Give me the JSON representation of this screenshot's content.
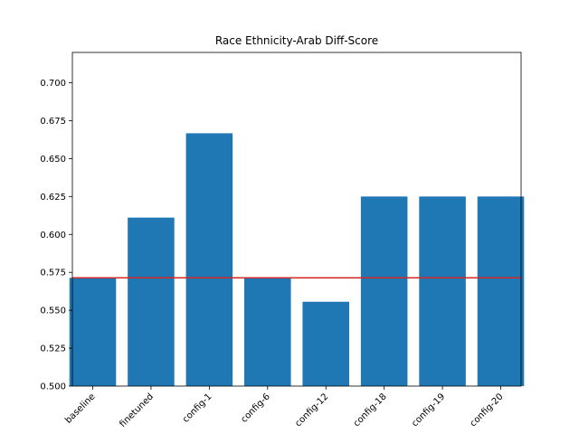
{
  "chart_data": {
    "type": "bar",
    "title": "Race Ethnicity-Arab Diff-Score",
    "xlabel": "",
    "ylabel": "",
    "categories": [
      "baseline",
      "finetuned",
      "config-1",
      "config-6",
      "config-12",
      "config-18",
      "config-19",
      "config-20"
    ],
    "values": [
      0.5714,
      0.6111,
      0.6667,
      0.5714,
      0.5556,
      0.625,
      0.625,
      0.625
    ],
    "ylim": [
      0.5,
      0.72
    ],
    "yticks": [
      "0.500",
      "0.525",
      "0.550",
      "0.575",
      "0.600",
      "0.625",
      "0.650",
      "0.675",
      "0.700"
    ],
    "reference_line": 0.5714,
    "bar_color": "#1f77b4",
    "reference_line_color": "#d62728",
    "grid": false,
    "xtick_rotation": 45
  }
}
